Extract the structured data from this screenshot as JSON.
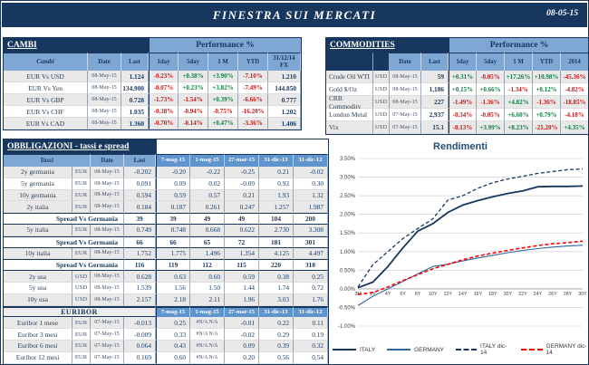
{
  "header": {
    "title": "FINESTRA SUI MERCATI",
    "date": "08-05-15"
  },
  "palette": {
    "navy": "#17375E",
    "header_blue": "#7FA7D4",
    "header_blue_dark": "#6094CC",
    "positive": "#0B8043",
    "negative": "#CC1414",
    "row_alt": "#E9E9E9"
  },
  "cambi": {
    "title": "CAMBI",
    "performance_label": "Performance  %",
    "columns": [
      "Cambi",
      "Date",
      "Last",
      "1day",
      "5day",
      "1 M",
      "YTD",
      "31/12/14 FX"
    ],
    "rows": [
      [
        "EUR Vs USD",
        "08-May-15",
        "1.124",
        "-0.23%",
        "+0.38%",
        "+3.90%",
        "-7.10%",
        "1.210"
      ],
      [
        "EUR Vs Yen",
        "08-May-15",
        "134.900",
        "-0.07%",
        "+0.23%",
        "+3.82%",
        "-7.49%",
        "144.850"
      ],
      [
        "EUR Vs GBP",
        "08-May-15",
        "0.728",
        "-1.73%",
        "-1.54%",
        "+0.39%",
        "-6.66%",
        "0.777"
      ],
      [
        "EUR Vs CHF",
        "08-May-15",
        "1.035",
        "-0.38%",
        "-0.94%",
        "-0.75%",
        "-16.20%",
        "1.202"
      ],
      [
        "EUR Vs CAD",
        "08-May-15",
        "1.360",
        "-0.70%",
        "-0.14%",
        "+0.47%",
        "-3.36%",
        "1.406"
      ]
    ]
  },
  "commodities": {
    "title": "COMMODITIES",
    "performance_label": "Performance  %",
    "columns": [
      "",
      "",
      "Date",
      "Last",
      "1day",
      "5day",
      "1 M",
      "YTD",
      "2014"
    ],
    "rows": [
      [
        "Crude Oil WTI",
        "USD",
        "08-May-15",
        "59",
        "+0.31%",
        "-0.05%",
        "+17.26%",
        "+10.98%",
        "-45.36%"
      ],
      [
        "Gold $/Oz",
        "USD",
        "08-May-15",
        "1,186",
        "+0.15%",
        "+0.66%",
        "-1.34%",
        "+0.12%",
        "-4.82%"
      ],
      [
        "CRB Commodity",
        "USD",
        "08-May-15",
        "227",
        "-1.49%",
        "-1.36%",
        "+4.82%",
        "-1.36%",
        "-18.85%"
      ],
      [
        "London Metal",
        "USD",
        "07-May-15",
        "2,937",
        "-0.34%",
        "-0.05%",
        "+6.60%",
        "+0.79%",
        "-4.18%"
      ],
      [
        "Vix",
        "USD",
        "07-May-15",
        "15.1",
        "-0.13%",
        "+3.99%",
        "+8.23%",
        "-21.20%",
        "+4.35%"
      ]
    ]
  },
  "obbligazioni": {
    "title": "OBBLIGAZIONI - tassi e spread",
    "header": [
      "Tassi",
      "Date",
      "Last",
      "7-mag-15",
      "1-mag-15",
      "27-mar-15",
      "31-dic-13",
      "31-dic-12"
    ],
    "rows": [
      {
        "type": "rate",
        "shade": true,
        "name": "2y germania",
        "ccy": "EUR",
        "date": "08-May-15",
        "last": "-0.202",
        "hist": [
          "-0.20",
          "-0.22",
          "-0.25",
          "0.21",
          "-0.02"
        ]
      },
      {
        "type": "rate",
        "shade": false,
        "name": "5y germania",
        "ccy": "EUR",
        "date": "08-May-15",
        "last": "0.091",
        "hist": [
          "0.09",
          "0.02",
          "-0.09",
          "0.92",
          "0.30"
        ]
      },
      {
        "type": "rate",
        "shade": true,
        "name": "10y germania",
        "ccy": "EUR",
        "date": "08-May-15",
        "last": "0.594",
        "hist": [
          "0.59",
          "0.57",
          "0.21",
          "1.93",
          "1.32"
        ]
      },
      {
        "type": "rate",
        "shade": true,
        "name": "2y italia",
        "ccy": "EUR",
        "date": "08-May-15",
        "last": "0.184",
        "hist": [
          "0.187",
          "0.261",
          "0.247",
          "1.257",
          "1.987"
        ]
      },
      {
        "type": "spread",
        "name": "Spread Vs Germania",
        "last": "39",
        "hist": [
          "39",
          "49",
          "49",
          "104",
          "200"
        ]
      },
      {
        "type": "rate",
        "shade": true,
        "name": "5y italia",
        "ccy": "EUR",
        "date": "08-May-15",
        "last": "0.749",
        "hist": [
          "0.748",
          "0.668",
          "0.622",
          "2.730",
          "3.308"
        ]
      },
      {
        "type": "spread",
        "name": "Spread Vs Germania",
        "last": "66",
        "hist": [
          "66",
          "65",
          "72",
          "181",
          "301"
        ]
      },
      {
        "type": "rate",
        "shade": true,
        "name": "10y italia",
        "ccy": "EUR",
        "date": "08-May-15",
        "last": "1.752",
        "hist": [
          "1.775",
          "1.496",
          "1.354",
          "4.125",
          "4.497"
        ]
      },
      {
        "type": "spread",
        "name": "Spread Vs Germania",
        "last": "116",
        "hist": [
          "119",
          "112",
          "115",
          "220",
          "318"
        ]
      },
      {
        "type": "rate",
        "shade": true,
        "name": "2y usa",
        "ccy": "USD",
        "date": "08-May-15",
        "last": "0.628",
        "hist": [
          "0.63",
          "0.60",
          "0.59",
          "0.38",
          "0.25"
        ]
      },
      {
        "type": "rate",
        "shade": false,
        "name": "5y usa",
        "ccy": "USD",
        "date": "08-May-15",
        "last": "1.539",
        "hist": [
          "1.56",
          "1.50",
          "1.44",
          "1.74",
          "0.72"
        ]
      },
      {
        "type": "rate",
        "shade": true,
        "name": "10y usa",
        "ccy": "USD",
        "date": "08-May-15",
        "last": "2.157",
        "hist": [
          "2.18",
          "2.11",
          "1.96",
          "3.03",
          "1.76"
        ]
      },
      {
        "type": "section",
        "name": "EURIBOR",
        "dates": [
          "7-mag-15",
          "1-mag-15",
          "27-mar-15",
          "31-dic-13",
          "31-dic-12"
        ]
      },
      {
        "type": "rate",
        "shade": true,
        "name": "Euribor 1 mese",
        "ccy": "EUR",
        "date": "07-May-15",
        "last": "-0.013",
        "hist": [
          "0.25",
          "#N/A N/A",
          "-0.01",
          "0.22",
          "0.11"
        ]
      },
      {
        "type": "rate",
        "shade": false,
        "name": "Euribor 3 mesi",
        "ccy": "EUR",
        "date": "07-May-15",
        "last": "-0.009",
        "hist": [
          "0.33",
          "#N/A N/A",
          "-0.02",
          "0.29",
          "0.19"
        ]
      },
      {
        "type": "rate",
        "shade": true,
        "name": "Euribor 6 mesi",
        "ccy": "EUR",
        "date": "07-May-15",
        "last": "0.064",
        "hist": [
          "0.43",
          "#N/A N/A",
          "0.09",
          "0.39",
          "0.32"
        ]
      },
      {
        "type": "rate",
        "shade": false,
        "name": "Euribor 12 mesi",
        "ccy": "EUR",
        "date": "07-May-15",
        "last": "0.169",
        "hist": [
          "0.60",
          "#N/A N/A",
          "0.20",
          "0.56",
          "0.54"
        ]
      }
    ]
  },
  "chart_data": {
    "type": "line",
    "title": "Rendimenti",
    "categories": [
      "3M",
      "2Y",
      "4Y",
      "6Y",
      "8Y",
      "10Y",
      "12Y",
      "14Y",
      "16Y",
      "18Y",
      "20Y",
      "22Y",
      "24Y",
      "26Y",
      "28Y",
      "30Y"
    ],
    "ylim": [
      -1.0,
      3.5
    ],
    "ytick_step": 0.5,
    "ylabel_format": "percent",
    "grid": "horizontal",
    "legend_position": "bottom",
    "series": [
      {
        "name": "ITALY",
        "color": "#17375E",
        "dash": false,
        "width": 1.8,
        "values": [
          0.03,
          0.18,
          0.6,
          1.1,
          1.55,
          1.75,
          2.05,
          2.25,
          2.37,
          2.47,
          2.56,
          2.63,
          2.74,
          2.75,
          2.75,
          2.76
        ]
      },
      {
        "name": "GERMANY",
        "color": "#31689B",
        "dash": false,
        "width": 1.1,
        "values": [
          -0.45,
          -0.2,
          0.0,
          0.2,
          0.4,
          0.6,
          0.66,
          0.75,
          0.83,
          0.9,
          0.97,
          1.03,
          1.08,
          1.12,
          1.15,
          1.17
        ]
      },
      {
        "name": "ITALY dic-14",
        "color": "#17375E",
        "dash": true,
        "width": 1.3,
        "values": [
          0.05,
          0.65,
          1.0,
          1.35,
          1.62,
          1.88,
          2.38,
          2.5,
          2.7,
          2.85,
          2.95,
          3.02,
          3.1,
          3.15,
          3.2,
          3.22
        ]
      },
      {
        "name": "GERMANY dic-14",
        "color": "#FF0000",
        "dash": true,
        "width": 1.6,
        "values": [
          -0.15,
          -0.1,
          0.05,
          0.22,
          0.38,
          0.54,
          0.66,
          0.78,
          0.88,
          0.96,
          1.03,
          1.1,
          1.16,
          1.21,
          1.24,
          1.28
        ]
      }
    ]
  }
}
